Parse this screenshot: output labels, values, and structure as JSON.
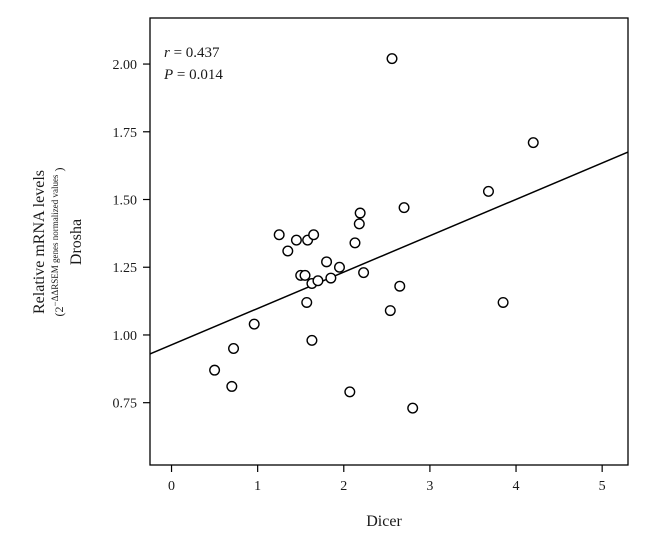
{
  "chart_data": {
    "type": "scatter",
    "title": "",
    "xlabel": "Dicer",
    "ylabel_line1": "Relative mRNA levels",
    "ylabel_formula_prefix": "(2",
    "ylabel_formula_sup": "−ΔΔRSEM genes normalized values",
    "ylabel_formula_suffix": ")",
    "ylabel_line3": "Drosha",
    "xlim": [
      -0.25,
      5.3
    ],
    "ylim": [
      0.52,
      2.17
    ],
    "xticks": [
      0,
      1,
      2,
      3,
      4,
      5
    ],
    "xtick_labels": [
      "0",
      "1",
      "2",
      "3",
      "4",
      "5"
    ],
    "yticks": [
      0.75,
      1.0,
      1.25,
      1.5,
      1.75,
      2.0
    ],
    "ytick_labels": [
      "0.75",
      "1.00",
      "1.25",
      "1.50",
      "1.75",
      "2.00"
    ],
    "annotations": {
      "r_symbol": "r",
      "r_value": " = 0.437",
      "p_symbol": "P",
      "p_value": " = 0.014"
    },
    "grid": false,
    "legend": "none",
    "points": [
      {
        "x": 0.5,
        "y": 0.87
      },
      {
        "x": 0.7,
        "y": 0.81
      },
      {
        "x": 0.72,
        "y": 0.95
      },
      {
        "x": 0.96,
        "y": 1.04
      },
      {
        "x": 1.25,
        "y": 1.37
      },
      {
        "x": 1.35,
        "y": 1.31
      },
      {
        "x": 1.45,
        "y": 1.35
      },
      {
        "x": 1.5,
        "y": 1.22
      },
      {
        "x": 1.55,
        "y": 1.22
      },
      {
        "x": 1.57,
        "y": 1.12
      },
      {
        "x": 1.58,
        "y": 1.35
      },
      {
        "x": 1.63,
        "y": 0.98
      },
      {
        "x": 1.63,
        "y": 1.19
      },
      {
        "x": 1.65,
        "y": 1.37
      },
      {
        "x": 1.7,
        "y": 1.2
      },
      {
        "x": 1.8,
        "y": 1.27
      },
      {
        "x": 1.85,
        "y": 1.21
      },
      {
        "x": 1.95,
        "y": 1.25
      },
      {
        "x": 2.07,
        "y": 0.79
      },
      {
        "x": 2.13,
        "y": 1.34
      },
      {
        "x": 2.18,
        "y": 1.41
      },
      {
        "x": 2.19,
        "y": 1.45
      },
      {
        "x": 2.23,
        "y": 1.23
      },
      {
        "x": 2.54,
        "y": 1.09
      },
      {
        "x": 2.56,
        "y": 2.02
      },
      {
        "x": 2.65,
        "y": 1.18
      },
      {
        "x": 2.7,
        "y": 1.47
      },
      {
        "x": 2.8,
        "y": 0.73
      },
      {
        "x": 3.68,
        "y": 1.53
      },
      {
        "x": 3.85,
        "y": 1.12
      },
      {
        "x": 4.2,
        "y": 1.71
      }
    ],
    "regression_line": {
      "x": [
        -0.25,
        5.3
      ],
      "y": [
        0.93,
        1.675
      ]
    }
  }
}
